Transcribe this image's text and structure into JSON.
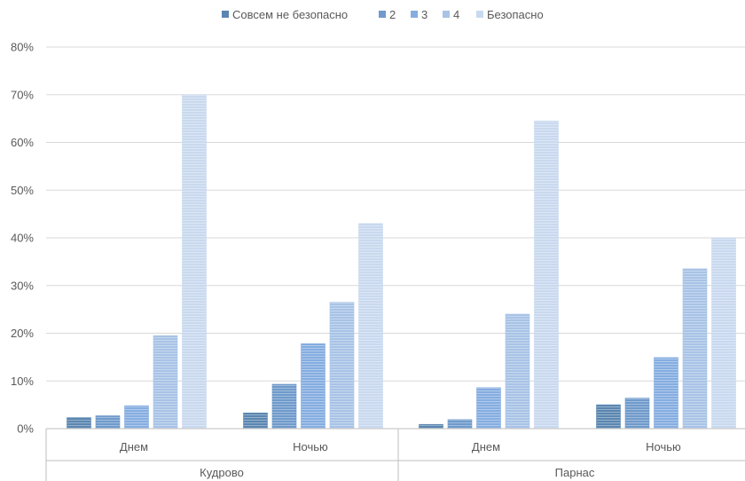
{
  "chart_data": {
    "type": "bar",
    "title": "",
    "xlabel": "",
    "ylabel": "",
    "ylim": [
      0,
      0.8
    ],
    "y_ticks": [
      "0%",
      "10%",
      "20%",
      "30%",
      "40%",
      "50%",
      "60%",
      "70%",
      "80%"
    ],
    "y_tick_values": [
      0,
      0.1,
      0.2,
      0.3,
      0.4,
      0.5,
      0.6,
      0.7,
      0.8
    ],
    "grid": true,
    "legend_position": "top",
    "groups": [
      {
        "name": "Кудрово",
        "categories": [
          "Днем",
          "Ночью"
        ]
      },
      {
        "name": "Парнас",
        "categories": [
          "Днем",
          "Ночью"
        ]
      }
    ],
    "categories": [
      "Днем",
      "Ночью",
      "Днем",
      "Ночью"
    ],
    "series": [
      {
        "name": "Совсем не безопасно",
        "color": "#5b86b0",
        "values": [
          0.023,
          0.033,
          0.009,
          0.05
        ]
      },
      {
        "name": "2",
        "color": "#6f9acb",
        "values": [
          0.027,
          0.093,
          0.019,
          0.064
        ]
      },
      {
        "name": "3",
        "color": "#85ade0",
        "values": [
          0.048,
          0.178,
          0.086,
          0.149
        ]
      },
      {
        "name": "4",
        "color": "#a8c3e6",
        "values": [
          0.195,
          0.265,
          0.24,
          0.335
        ]
      },
      {
        "name": "Безопасно",
        "color": "#c9d9ef",
        "values": [
          0.7,
          0.43,
          0.645,
          0.4
        ]
      }
    ]
  }
}
